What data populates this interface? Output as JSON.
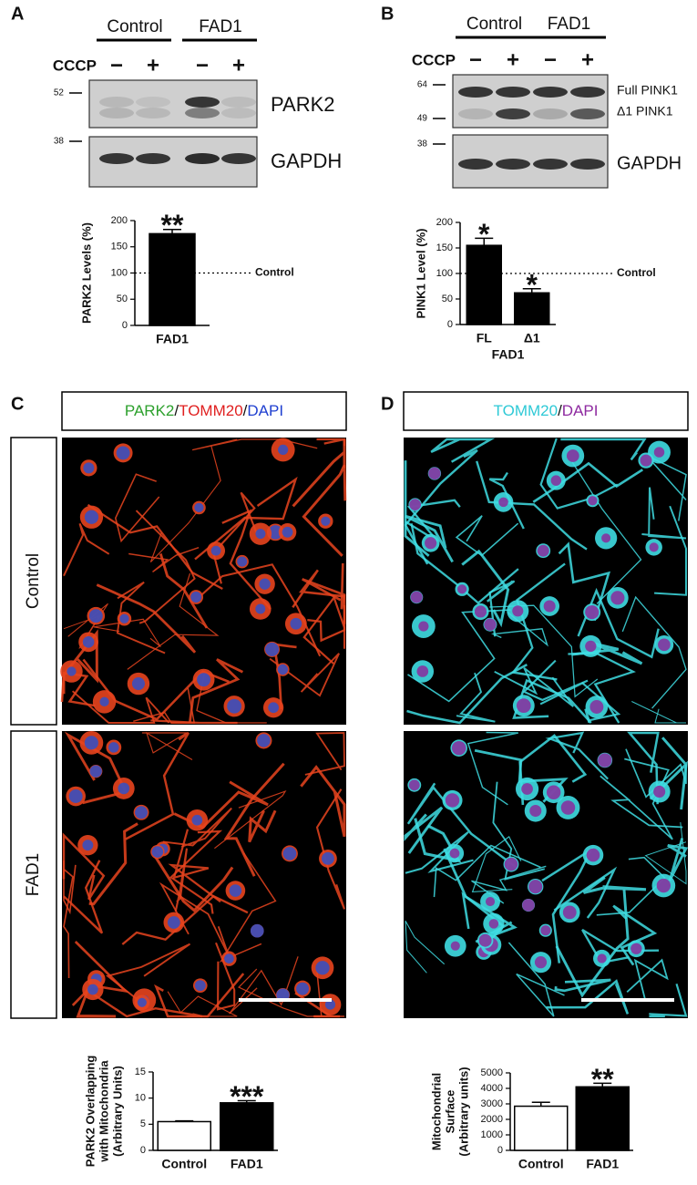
{
  "panels": {
    "A": {
      "letter": "A",
      "groups": [
        "Control",
        "FAD1"
      ],
      "treatment_label": "CCCP",
      "treatments": [
        "−",
        "+",
        "−",
        "+"
      ],
      "markers": [
        "52",
        "38"
      ],
      "bands": [
        "PARK2",
        "GAPDH"
      ]
    },
    "B": {
      "letter": "B",
      "groups": [
        "Control",
        "FAD1"
      ],
      "treatment_label": "CCCP",
      "treatments": [
        "−",
        "+",
        "−",
        "+"
      ],
      "markers": [
        "64",
        "49",
        "38"
      ],
      "bands": [
        "Full PINK1",
        "Δ1 PINK1",
        "GAPDH"
      ]
    },
    "C": {
      "letter": "C",
      "header": [
        "PARK2",
        "/",
        "TOMM20",
        "/",
        "DAPI"
      ],
      "header_colors": [
        "#2ca02c",
        "#111111",
        "#e02020",
        "#111111",
        "#1f3fd0"
      ],
      "rows": [
        "Control",
        "FAD1"
      ]
    },
    "D": {
      "letter": "D",
      "header": [
        "TOMM20",
        "/",
        "DAPI"
      ],
      "header_colors": [
        "#2ec9d6",
        "#111111",
        "#8e2aa0"
      ]
    }
  },
  "chart_data": [
    {
      "type": "bar",
      "ylabel": [
        "PARK2 Levels (%)"
      ],
      "categories": [
        "FAD1"
      ],
      "values": [
        175
      ],
      "errors": [
        8
      ],
      "colors": [
        "#000000"
      ],
      "ylim": [
        0,
        200
      ],
      "yticks": [
        0,
        50,
        100,
        150,
        200
      ],
      "annotations": [
        "**"
      ],
      "reference": {
        "value": 100,
        "label": "Control"
      }
    },
    {
      "type": "bar",
      "ylabel": [
        "PINK1 Level (%)"
      ],
      "xlabel": "FAD1",
      "categories": [
        "FL",
        "Δ1"
      ],
      "values": [
        155,
        62
      ],
      "errors": [
        14,
        8
      ],
      "colors": [
        "#000000",
        "#000000"
      ],
      "ylim": [
        0,
        200
      ],
      "yticks": [
        0,
        50,
        100,
        150,
        200
      ],
      "annotations": [
        "*",
        "*"
      ],
      "reference": {
        "value": 100,
        "label": "Control"
      }
    },
    {
      "type": "bar",
      "ylabel": [
        "PARK2 Overlapping",
        "with Mitochondria",
        "(Arbitrary Units)"
      ],
      "categories": [
        "Control",
        "FAD1"
      ],
      "values": [
        5.5,
        9.1
      ],
      "errors": [
        0.15,
        0.4
      ],
      "colors": [
        "#ffffff",
        "#000000"
      ],
      "ylim": [
        0,
        15
      ],
      "yticks": [
        0,
        5,
        10,
        15
      ],
      "annotations": [
        null,
        "***"
      ]
    },
    {
      "type": "bar",
      "ylabel": [
        "Mitochondrial",
        "Surface",
        "(Arbitrary units)"
      ],
      "categories": [
        "Control",
        "FAD1"
      ],
      "values": [
        2850,
        4100
      ],
      "errors": [
        250,
        230
      ],
      "colors": [
        "#ffffff",
        "#000000"
      ],
      "ylim": [
        0,
        5000
      ],
      "yticks": [
        0,
        1000,
        2000,
        3000,
        4000,
        5000
      ],
      "annotations": [
        null,
        "**"
      ]
    }
  ]
}
